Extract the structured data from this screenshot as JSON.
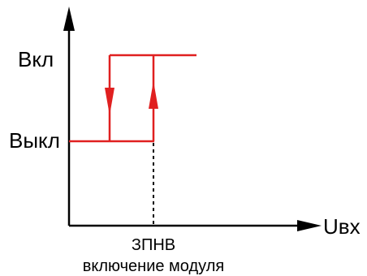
{
  "labels": {
    "on_level": "Вкл",
    "off_level": "Выкл",
    "x_axis": "Uвх",
    "threshold_line1": "ЗПНВ",
    "threshold_line2": "включение модуля"
  },
  "colors": {
    "curve": "#e02020",
    "axis": "#000000"
  }
}
